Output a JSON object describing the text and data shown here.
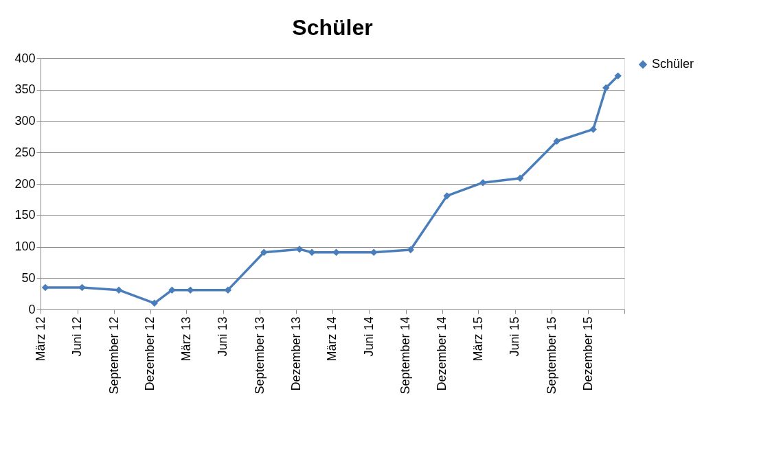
{
  "chart_data": {
    "type": "line",
    "title": "Schüler",
    "x": [
      "2012-03-13",
      "2012-06-13",
      "2012-09-13",
      "2012-12-11",
      "2013-01-24",
      "2013-03-11",
      "2013-06-13",
      "2013-09-11",
      "2013-12-09",
      "2014-01-09",
      "2014-03-11",
      "2014-06-13",
      "2014-09-13",
      "2014-12-13",
      "2015-03-13",
      "2015-06-14",
      "2015-09-14",
      "2015-12-14",
      "2016-01-15",
      "2016-02-14"
    ],
    "series": [
      {
        "name": "Schüler",
        "color": "#4a7ebb",
        "values": [
          35,
          35,
          31,
          10,
          31,
          31,
          31,
          91,
          96,
          91,
          91,
          91,
          95,
          181,
          202,
          209,
          268,
          287,
          353,
          372
        ]
      }
    ],
    "xlim": [
      "2012-03-01",
      "2016-03-01"
    ],
    "xticks": [
      {
        "value": "2012-03-01",
        "label": "März 12"
      },
      {
        "value": "2012-06-01",
        "label": "Juni 12"
      },
      {
        "value": "2012-09-01",
        "label": "September 12"
      },
      {
        "value": "2012-12-01",
        "label": "Dezember 12"
      },
      {
        "value": "2013-03-01",
        "label": "März 13"
      },
      {
        "value": "2013-06-01",
        "label": "Juni 13"
      },
      {
        "value": "2013-09-01",
        "label": "September 13"
      },
      {
        "value": "2013-12-01",
        "label": "Dezember 13"
      },
      {
        "value": "2014-03-01",
        "label": "März 14"
      },
      {
        "value": "2014-06-01",
        "label": "Juni 14"
      },
      {
        "value": "2014-09-01",
        "label": "September 14"
      },
      {
        "value": "2014-12-01",
        "label": "Dezember 14"
      },
      {
        "value": "2015-03-01",
        "label": "März 15"
      },
      {
        "value": "2015-06-01",
        "label": "Juni 15"
      },
      {
        "value": "2015-09-01",
        "label": "September 15"
      },
      {
        "value": "2015-12-01",
        "label": "Dezember 15"
      },
      {
        "value": "2016-03-01",
        "label": null
      }
    ],
    "ylim": [
      0,
      400
    ],
    "yticks": [
      0,
      50,
      100,
      150,
      200,
      250,
      300,
      350,
      400
    ],
    "grid": "y",
    "legend": "right",
    "marker": "diamond",
    "line_style": "solid"
  }
}
